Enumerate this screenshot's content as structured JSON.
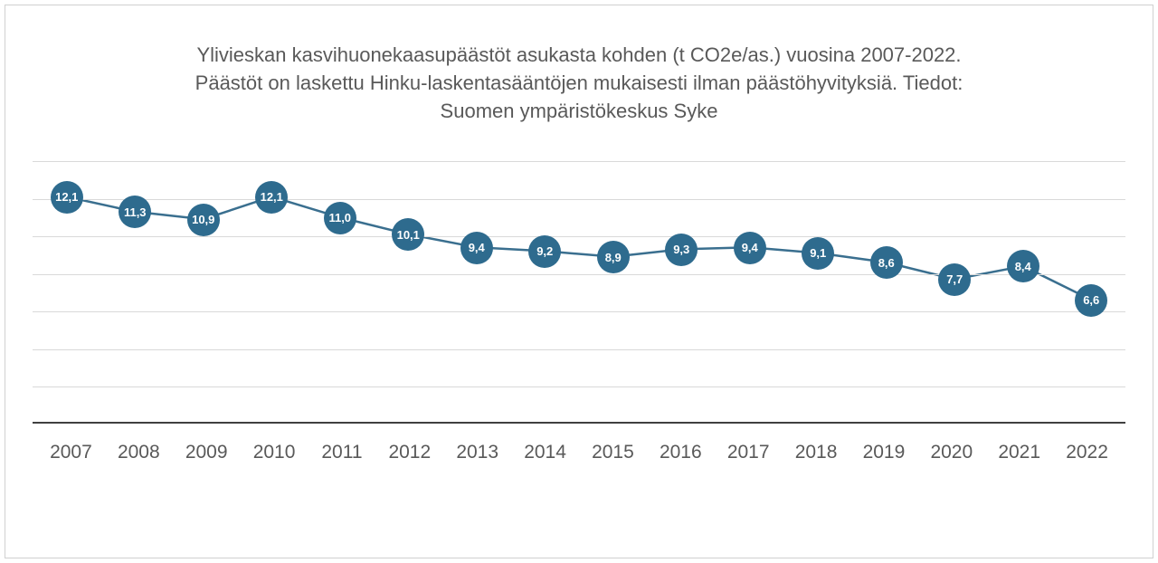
{
  "chart": {
    "type": "line",
    "title": "Ylivieskan kasvihuonekaasupäästöt asukasta kohden (t CO2e/as.) vuosina 2007-2022. Päästöt on laskettu Hinku-laskentasääntöjen mukaisesti ilman päästöhyvityksiä. Tiedot: Suomen ympäristökeskus Syke",
    "title_color": "#595959",
    "title_fontsize": 22,
    "x_labels": [
      "2007",
      "2008",
      "2009",
      "2010",
      "2011",
      "2012",
      "2013",
      "2014",
      "2015",
      "2016",
      "2017",
      "2018",
      "2019",
      "2020",
      "2021",
      "2022"
    ],
    "values": [
      12.1,
      11.3,
      10.9,
      12.1,
      11.0,
      10.1,
      9.4,
      9.2,
      8.9,
      9.3,
      9.4,
      9.1,
      8.6,
      7.7,
      8.4,
      6.6
    ],
    "value_labels": [
      "12,1",
      "11,3",
      "10,9",
      "12,1",
      "11,0",
      "10,1",
      "9,4",
      "9,2",
      "8,9",
      "9,3",
      "9,4",
      "9,1",
      "8,6",
      "7,7",
      "8,4",
      "6,6"
    ],
    "ylim": [
      0,
      14
    ],
    "ytick_step": 2,
    "grid_color": "#d9d9d9",
    "axis_color": "#404040",
    "line_color": "#3a6f8f",
    "line_width": 2.5,
    "marker_color": "#2e6b8e",
    "marker_radius": 18,
    "marker_label_color": "#ffffff",
    "marker_label_fontsize": 13,
    "x_label_color": "#595959",
    "x_label_fontsize": 21,
    "background_color": "#ffffff",
    "border_color": "#d0d0d0"
  }
}
